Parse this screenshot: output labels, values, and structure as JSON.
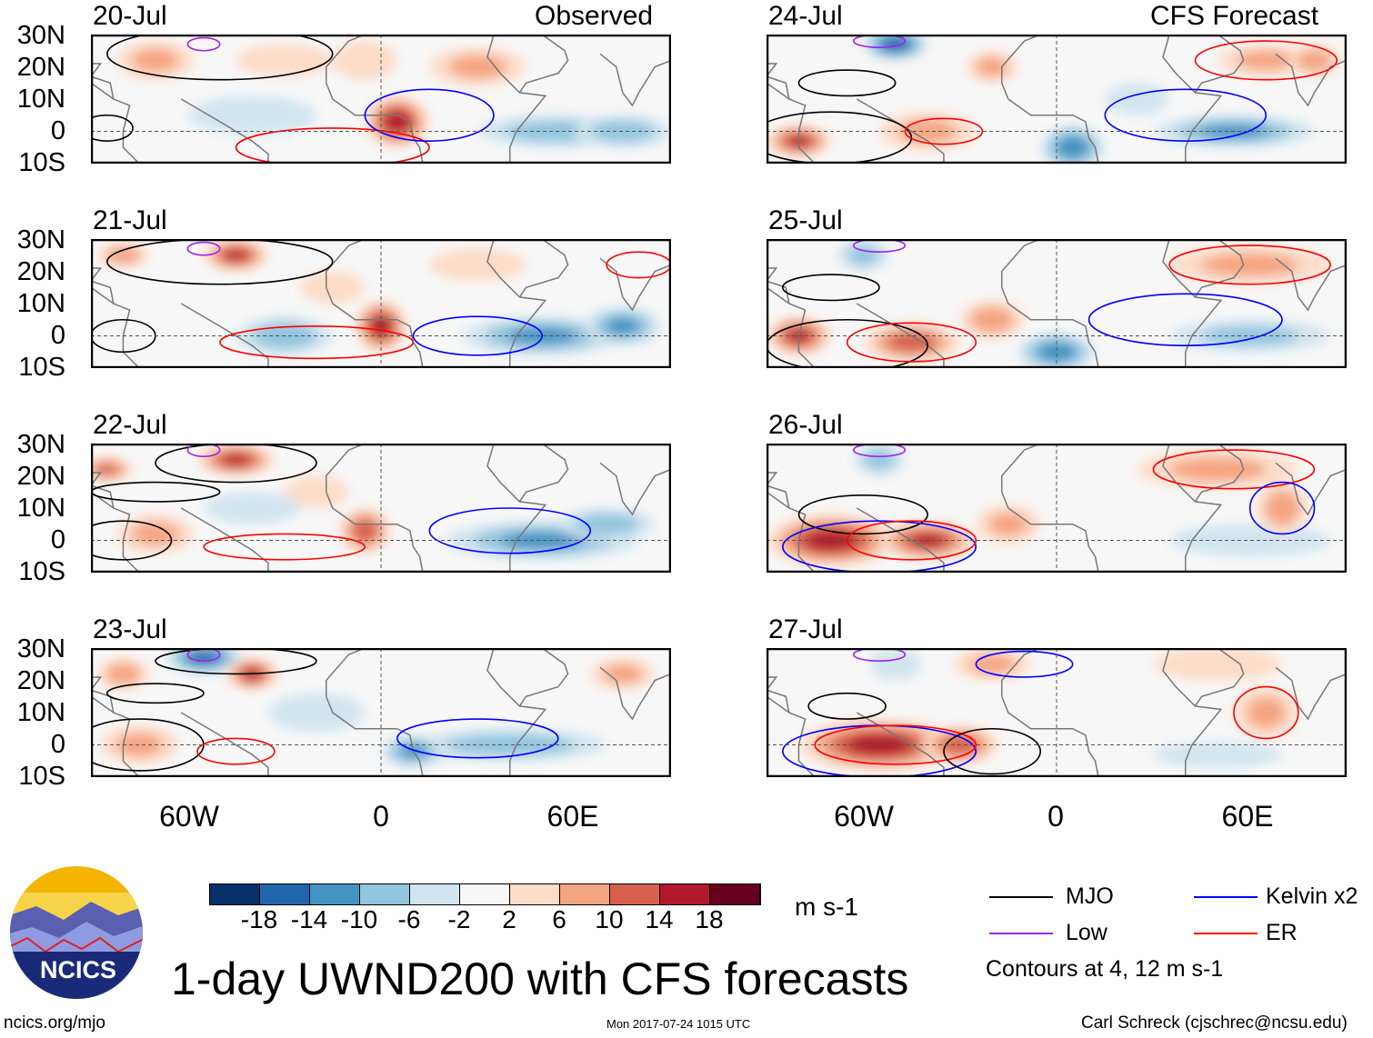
{
  "panel_headers": {
    "observed": "Observed",
    "forecast": "CFS Forecast"
  },
  "lat_labels": [
    "30N",
    "20N",
    "10N",
    "0",
    "10S"
  ],
  "lon_labels": [
    "60W",
    "0",
    "60E"
  ],
  "title": "1-day UWND200 with CFS forecasts",
  "units": "m s-1",
  "logo_text": "NCICS",
  "footer": {
    "left": "ncics.org/mjo",
    "center": "Mon 2017-07-24 1015 UTC",
    "right": "Carl Schreck (cjschrec@ncsu.edu)"
  },
  "legend": {
    "items": [
      {
        "label": "MJO",
        "color": "#000000"
      },
      {
        "label": "Kelvin x2",
        "color": "#0000ff"
      },
      {
        "label": "Low",
        "color": "#a020f0"
      },
      {
        "label": "ER",
        "color": "#ff0000"
      }
    ],
    "note": "Contours at 4, 12 m s-1"
  },
  "chart_data": {
    "type": "heatmap",
    "variable": "200-hPa zonal wind anomaly",
    "lon_range": [
      -90,
      90
    ],
    "lat_range": [
      -10,
      30
    ],
    "colorbar": {
      "ticks": [
        "-18",
        "-14",
        "-10",
        "-6",
        "-2",
        "2",
        "6",
        "10",
        "14",
        "18"
      ],
      "colors": [
        "#08306b",
        "#2166ac",
        "#4393c3",
        "#92c5de",
        "#d1e5f0",
        "#f7f7f7",
        "#fddbc7",
        "#f4a582",
        "#d6604d",
        "#b2182b",
        "#67001f"
      ]
    },
    "panels": [
      {
        "date": "20-Jul",
        "type": "Observed",
        "blobs": [
          [
            -70,
            22,
            12,
            6,
            8
          ],
          [
            -30,
            22,
            15,
            5,
            6
          ],
          [
            5,
            3,
            10,
            8,
            18
          ],
          [
            30,
            20,
            15,
            6,
            8
          ],
          [
            55,
            0,
            25,
            5,
            -10
          ],
          [
            75,
            0,
            15,
            5,
            -10
          ],
          [
            -40,
            5,
            20,
            6,
            -4
          ],
          [
            -5,
            22,
            10,
            6,
            6
          ]
        ],
        "contours": [
          [
            -50,
            24,
            35,
            8,
            "#000"
          ],
          [
            -85,
            1,
            8,
            4,
            "#000"
          ],
          [
            -15,
            -5,
            30,
            6,
            "#f00"
          ],
          [
            15,
            5,
            20,
            8,
            "#00f"
          ],
          [
            -55,
            27,
            5,
            2,
            "#a020f0"
          ]
        ]
      },
      {
        "date": "24-Jul",
        "type": "CFS Forecast",
        "blobs": [
          [
            -50,
            27,
            10,
            5,
            -18
          ],
          [
            -80,
            -3,
            10,
            5,
            16
          ],
          [
            -40,
            0,
            15,
            6,
            8
          ],
          [
            -20,
            20,
            8,
            5,
            8
          ],
          [
            5,
            -5,
            10,
            7,
            -14
          ],
          [
            55,
            0,
            25,
            5,
            -12
          ],
          [
            65,
            22,
            15,
            5,
            8
          ],
          [
            80,
            22,
            8,
            5,
            10
          ],
          [
            25,
            10,
            10,
            5,
            -6
          ]
        ],
        "contours": [
          [
            -65,
            15,
            15,
            4,
            "#000"
          ],
          [
            -70,
            -2,
            25,
            8,
            "#000"
          ],
          [
            -35,
            0,
            12,
            4,
            "#f00"
          ],
          [
            65,
            22,
            22,
            6,
            "#f00"
          ],
          [
            -55,
            28,
            8,
            2,
            "#a020f0"
          ],
          [
            40,
            5,
            25,
            8,
            "#00f"
          ]
        ]
      },
      {
        "date": "21-Jul",
        "type": "Observed",
        "blobs": [
          [
            -45,
            25,
            10,
            5,
            16
          ],
          [
            -80,
            25,
            8,
            4,
            10
          ],
          [
            0,
            3,
            8,
            8,
            18
          ],
          [
            -30,
            0,
            15,
            6,
            -10
          ],
          [
            50,
            0,
            25,
            6,
            -12
          ],
          [
            75,
            3,
            12,
            6,
            -12
          ],
          [
            -15,
            15,
            10,
            5,
            6
          ],
          [
            30,
            22,
            15,
            5,
            6
          ]
        ],
        "contours": [
          [
            -50,
            23,
            35,
            7,
            "#000"
          ],
          [
            -80,
            0,
            10,
            5,
            "#000"
          ],
          [
            -20,
            -2,
            30,
            5,
            "#f00"
          ],
          [
            30,
            0,
            20,
            6,
            "#00f"
          ],
          [
            -55,
            27,
            5,
            2,
            "#a020f0"
          ],
          [
            80,
            22,
            10,
            4,
            "#f00"
          ]
        ]
      },
      {
        "date": "25-Jul",
        "type": "CFS Forecast",
        "blobs": [
          [
            -80,
            0,
            10,
            6,
            16
          ],
          [
            -45,
            -2,
            15,
            6,
            14
          ],
          [
            -20,
            5,
            10,
            6,
            10
          ],
          [
            0,
            -5,
            12,
            6,
            -14
          ],
          [
            60,
            0,
            25,
            5,
            -8
          ],
          [
            60,
            22,
            25,
            6,
            8
          ],
          [
            -60,
            25,
            8,
            5,
            -8
          ]
        ],
        "contours": [
          [
            -70,
            15,
            15,
            4,
            "#000"
          ],
          [
            -65,
            -3,
            25,
            8,
            "#000"
          ],
          [
            -45,
            -2,
            20,
            6,
            "#f00"
          ],
          [
            60,
            22,
            25,
            6,
            "#f00"
          ],
          [
            40,
            5,
            30,
            8,
            "#00f"
          ],
          [
            -55,
            28,
            8,
            2,
            "#a020f0"
          ]
        ]
      },
      {
        "date": "22-Jul",
        "type": "Observed",
        "blobs": [
          [
            -45,
            25,
            12,
            5,
            16
          ],
          [
            -85,
            22,
            8,
            4,
            12
          ],
          [
            -5,
            3,
            8,
            7,
            14
          ],
          [
            -70,
            2,
            12,
            6,
            8
          ],
          [
            50,
            0,
            30,
            6,
            -12
          ],
          [
            70,
            5,
            15,
            5,
            -10
          ],
          [
            -20,
            15,
            10,
            5,
            6
          ],
          [
            -40,
            10,
            15,
            5,
            -4
          ]
        ],
        "contours": [
          [
            -45,
            24,
            25,
            6,
            "#000"
          ],
          [
            -70,
            15,
            20,
            3,
            "#000"
          ],
          [
            -80,
            0,
            15,
            6,
            "#000"
          ],
          [
            -30,
            -2,
            25,
            4,
            "#f00"
          ],
          [
            40,
            3,
            25,
            7,
            "#00f"
          ],
          [
            -55,
            28,
            5,
            2,
            "#a020f0"
          ]
        ]
      },
      {
        "date": "26-Jul",
        "type": "CFS Forecast",
        "blobs": [
          [
            -70,
            0,
            20,
            8,
            18
          ],
          [
            -40,
            0,
            15,
            6,
            16
          ],
          [
            -15,
            5,
            10,
            6,
            8
          ],
          [
            60,
            0,
            25,
            5,
            -6
          ],
          [
            70,
            10,
            8,
            8,
            10
          ],
          [
            50,
            22,
            25,
            6,
            8
          ],
          [
            -55,
            25,
            8,
            5,
            -8
          ]
        ],
        "contours": [
          [
            -60,
            8,
            20,
            6,
            "#000"
          ],
          [
            -55,
            -2,
            30,
            8,
            "#00f"
          ],
          [
            -45,
            0,
            20,
            6,
            "#f00"
          ],
          [
            55,
            22,
            25,
            6,
            "#f00"
          ],
          [
            -55,
            28,
            8,
            2,
            "#a020f0"
          ],
          [
            70,
            10,
            10,
            8,
            "#00f"
          ]
        ]
      },
      {
        "date": "23-Jul",
        "type": "Observed",
        "blobs": [
          [
            -55,
            27,
            12,
            5,
            -16
          ],
          [
            -40,
            22,
            8,
            5,
            16
          ],
          [
            -80,
            22,
            8,
            5,
            10
          ],
          [
            -75,
            0,
            12,
            6,
            8
          ],
          [
            40,
            0,
            30,
            5,
            -10
          ],
          [
            10,
            -2,
            10,
            5,
            -12
          ],
          [
            75,
            22,
            10,
            5,
            8
          ],
          [
            -20,
            10,
            15,
            6,
            -4
          ]
        ],
        "contours": [
          [
            -70,
            16,
            15,
            3,
            "#000"
          ],
          [
            -75,
            0,
            20,
            8,
            "#000"
          ],
          [
            -45,
            26,
            25,
            4,
            "#000"
          ],
          [
            -45,
            -2,
            12,
            4,
            "#f00"
          ],
          [
            30,
            2,
            25,
            6,
            "#00f"
          ],
          [
            -55,
            28,
            5,
            2,
            "#a020f0"
          ]
        ]
      },
      {
        "date": "27-Jul",
        "type": "CFS Forecast",
        "blobs": [
          [
            -55,
            0,
            25,
            8,
            18
          ],
          [
            -30,
            0,
            12,
            6,
            14
          ],
          [
            -20,
            25,
            12,
            5,
            8
          ],
          [
            65,
            10,
            10,
            8,
            8
          ],
          [
            50,
            25,
            20,
            5,
            6
          ],
          [
            50,
            -3,
            20,
            4,
            -6
          ],
          [
            -50,
            25,
            8,
            5,
            -6
          ]
        ],
        "contours": [
          [
            -65,
            12,
            12,
            4,
            "#000"
          ],
          [
            -55,
            -2,
            30,
            8,
            "#00f"
          ],
          [
            -50,
            0,
            25,
            6,
            "#f00"
          ],
          [
            -20,
            -2,
            15,
            7,
            "#000"
          ],
          [
            65,
            10,
            10,
            8,
            "#f00"
          ],
          [
            -55,
            28,
            8,
            2,
            "#a020f0"
          ],
          [
            -10,
            25,
            15,
            4,
            "#00f"
          ]
        ]
      }
    ]
  }
}
